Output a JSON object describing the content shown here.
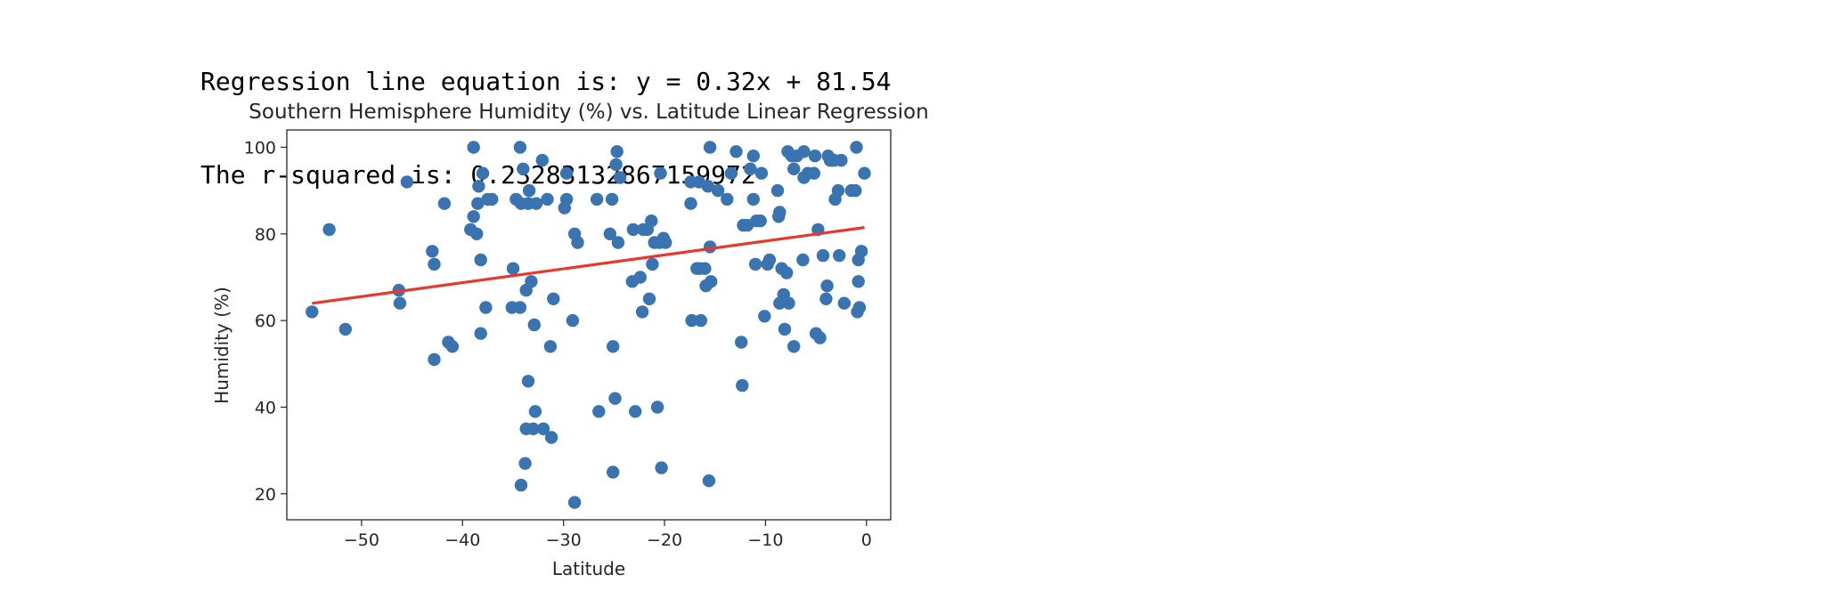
{
  "output": {
    "equation_line": "Regression line equation is: y = 0.32x + 81.54",
    "rsquared_line": "The r-squared is: 0.23283132867159972"
  },
  "colors": {
    "points": "#3a74b0",
    "regression_line": "#e8382a",
    "axes": "#262626"
  },
  "chart_data": {
    "type": "scatter",
    "title": "Southern Hemisphere Humidity (%) vs. Latitude Linear Regression",
    "xlabel": "Latitude",
    "ylabel": "Humidity (%)",
    "xlim": [
      -57.4,
      2.4
    ],
    "ylim": [
      14,
      104
    ],
    "xticks": [
      -50,
      -40,
      -30,
      -20,
      -10,
      0
    ],
    "yticks": [
      20,
      40,
      60,
      80,
      100
    ],
    "grid": false,
    "regression": {
      "slope": 0.32,
      "intercept": 81.54,
      "x_range": [
        -54.9,
        -0.2
      ]
    },
    "points": [
      [
        -54.9,
        62
      ],
      [
        -53.2,
        81
      ],
      [
        -51.6,
        58
      ],
      [
        -46.3,
        67
      ],
      [
        -46.2,
        64
      ],
      [
        -45.5,
        92
      ],
      [
        -43.0,
        76
      ],
      [
        -42.8,
        73
      ],
      [
        -42.8,
        51
      ],
      [
        -41.8,
        87
      ],
      [
        -41.4,
        55
      ],
      [
        -41.0,
        54
      ],
      [
        -39.2,
        81
      ],
      [
        -38.9,
        84
      ],
      [
        -38.9,
        100
      ],
      [
        -38.6,
        80
      ],
      [
        -38.5,
        87
      ],
      [
        -38.4,
        91
      ],
      [
        -38.2,
        74
      ],
      [
        -38.2,
        57
      ],
      [
        -38.0,
        94
      ],
      [
        -37.7,
        63
      ],
      [
        -37.5,
        88
      ],
      [
        -37.1,
        88
      ],
      [
        -35.1,
        63
      ],
      [
        -35.0,
        72
      ],
      [
        -34.7,
        88
      ],
      [
        -34.3,
        63
      ],
      [
        -34.3,
        100
      ],
      [
        -34.2,
        87
      ],
      [
        -34.0,
        95
      ],
      [
        -34.2,
        22
      ],
      [
        -33.8,
        27
      ],
      [
        -33.7,
        67
      ],
      [
        -33.7,
        35
      ],
      [
        -33.5,
        46
      ],
      [
        -33.5,
        87
      ],
      [
        -33.4,
        90
      ],
      [
        -33.2,
        69
      ],
      [
        -33.0,
        35
      ],
      [
        -32.9,
        59
      ],
      [
        -32.8,
        39
      ],
      [
        -32.7,
        87
      ],
      [
        -32.1,
        97
      ],
      [
        -32.0,
        35
      ],
      [
        -31.6,
        88
      ],
      [
        -31.3,
        54
      ],
      [
        -31.2,
        33
      ],
      [
        -31.0,
        65
      ],
      [
        -29.9,
        86
      ],
      [
        -29.7,
        94
      ],
      [
        -29.7,
        88
      ],
      [
        -29.1,
        60
      ],
      [
        -28.9,
        80
      ],
      [
        -28.9,
        18
      ],
      [
        -28.6,
        78
      ],
      [
        -26.7,
        88
      ],
      [
        -26.5,
        39
      ],
      [
        -25.4,
        80
      ],
      [
        -25.2,
        88
      ],
      [
        -25.1,
        25
      ],
      [
        -25.1,
        54
      ],
      [
        -24.9,
        42
      ],
      [
        -24.8,
        96
      ],
      [
        -24.7,
        99
      ],
      [
        -24.6,
        78
      ],
      [
        -24.4,
        93
      ],
      [
        -23.2,
        69
      ],
      [
        -23.1,
        81
      ],
      [
        -22.9,
        39
      ],
      [
        -22.4,
        70
      ],
      [
        -22.2,
        62
      ],
      [
        -22.1,
        81
      ],
      [
        -21.7,
        81
      ],
      [
        -21.5,
        65
      ],
      [
        -21.3,
        83
      ],
      [
        -21.2,
        73
      ],
      [
        -21.0,
        78
      ],
      [
        -20.7,
        40
      ],
      [
        -20.5,
        78
      ],
      [
        -20.4,
        94
      ],
      [
        -20.3,
        26
      ],
      [
        -20.1,
        79
      ],
      [
        -19.9,
        78
      ],
      [
        -17.4,
        92
      ],
      [
        -17.4,
        87
      ],
      [
        -17.3,
        60
      ],
      [
        -16.8,
        72
      ],
      [
        -16.6,
        92
      ],
      [
        -16.5,
        72
      ],
      [
        -16.4,
        60
      ],
      [
        -16.0,
        72
      ],
      [
        -15.9,
        68
      ],
      [
        -15.7,
        91
      ],
      [
        -15.5,
        100
      ],
      [
        -15.5,
        77
      ],
      [
        -15.4,
        69
      ],
      [
        -15.6,
        23
      ],
      [
        -14.7,
        90
      ],
      [
        -13.8,
        88
      ],
      [
        -13.4,
        94
      ],
      [
        -12.9,
        99
      ],
      [
        -12.4,
        55
      ],
      [
        -12.3,
        45
      ],
      [
        -12.2,
        82
      ],
      [
        -11.8,
        82
      ],
      [
        -11.5,
        95
      ],
      [
        -11.2,
        98
      ],
      [
        -11.2,
        88
      ],
      [
        -11.0,
        73
      ],
      [
        -10.9,
        83
      ],
      [
        -10.5,
        83
      ],
      [
        -10.4,
        94
      ],
      [
        -10.1,
        61
      ],
      [
        -9.8,
        73
      ],
      [
        -9.6,
        74
      ],
      [
        -8.8,
        90
      ],
      [
        -8.7,
        84
      ],
      [
        -8.6,
        85
      ],
      [
        -8.6,
        64
      ],
      [
        -8.4,
        72
      ],
      [
        -8.2,
        66
      ],
      [
        -8.1,
        58
      ],
      [
        -7.9,
        71
      ],
      [
        -7.8,
        99
      ],
      [
        -7.7,
        64
      ],
      [
        -7.4,
        98
      ],
      [
        -7.2,
        95
      ],
      [
        -7.2,
        54
      ],
      [
        -6.9,
        98
      ],
      [
        -6.3,
        74
      ],
      [
        -6.2,
        99
      ],
      [
        -6.2,
        93
      ],
      [
        -5.8,
        94
      ],
      [
        -5.2,
        94
      ],
      [
        -5.1,
        98
      ],
      [
        -5.0,
        57
      ],
      [
        -4.8,
        81
      ],
      [
        -4.6,
        56
      ],
      [
        -4.3,
        75
      ],
      [
        -4.0,
        65
      ],
      [
        -3.9,
        68
      ],
      [
        -3.8,
        98
      ],
      [
        -3.6,
        97
      ],
      [
        -3.4,
        97
      ],
      [
        -3.2,
        97
      ],
      [
        -3.1,
        88
      ],
      [
        -2.8,
        90
      ],
      [
        -2.7,
        75
      ],
      [
        -2.5,
        97
      ],
      [
        -2.2,
        64
      ],
      [
        -1.5,
        90
      ],
      [
        -1.1,
        90
      ],
      [
        -1.0,
        100
      ],
      [
        -0.9,
        62
      ],
      [
        -0.8,
        74
      ],
      [
        -0.8,
        69
      ],
      [
        -0.7,
        63
      ],
      [
        -0.5,
        76
      ],
      [
        -0.2,
        94
      ]
    ]
  }
}
